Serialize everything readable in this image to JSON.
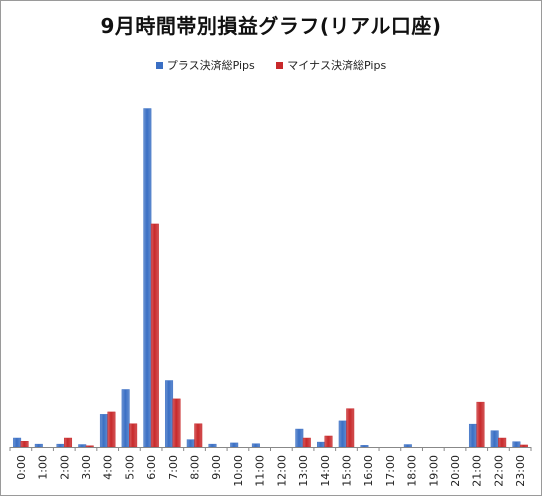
{
  "colors": {
    "plus": "#3a6fc4",
    "minus": "#c8292b",
    "axis": "#888888"
  },
  "chart_data": {
    "type": "bar",
    "title": "9月時間帯別損益グラフ(リアル口座)",
    "xlabel": "",
    "ylabel": "",
    "ylim": [
      0,
      900
    ],
    "grid": false,
    "legend_position": "top",
    "categories": [
      "0:00",
      "1:00",
      "2:00",
      "3:00",
      "4:00",
      "5:00",
      "6:00",
      "7:00",
      "8:00",
      "9:00",
      "10:00",
      "11:00",
      "12:00",
      "13:00",
      "14:00",
      "15:00",
      "16:00",
      "17:00",
      "18:00",
      "19:00",
      "20:00",
      "21:00",
      "22:00",
      "23:00"
    ],
    "series": [
      {
        "name": "プラス決済総Pips",
        "color": "#3a6fc4",
        "values": [
          22,
          7,
          7,
          6,
          80,
          141,
          830,
          163,
          18,
          7,
          10,
          8,
          0,
          44,
          12,
          64,
          4,
          0,
          6,
          0,
          0,
          56,
          40,
          13
        ]
      },
      {
        "name": "マイナス決済総Pips",
        "color": "#c8292b",
        "values": [
          14,
          0,
          22,
          3,
          86,
          57,
          547,
          118,
          57,
          0,
          0,
          0,
          0,
          22,
          27,
          94,
          0,
          0,
          0,
          0,
          0,
          110,
          22,
          5
        ]
      }
    ]
  }
}
